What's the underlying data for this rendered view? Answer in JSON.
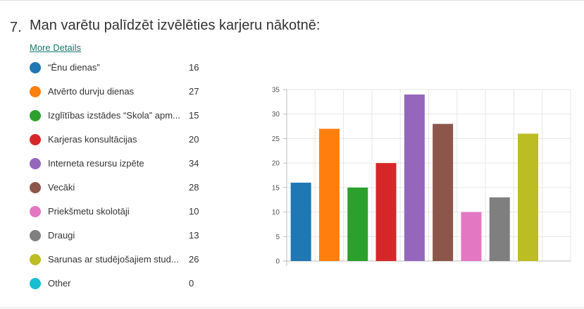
{
  "question": {
    "number": "7.",
    "title": "Man varētu palīdzēt izvēlēties karjeru nākotnē:",
    "more_details": "More Details"
  },
  "legend": [
    {
      "label": "“Ēnu dienas”",
      "count": "16",
      "color": "#1f77b4"
    },
    {
      "label": "Atvērto durvju dienas",
      "count": "27",
      "color": "#ff7f0e"
    },
    {
      "label": "Izglītības izstādes “Skola” apm...",
      "count": "15",
      "color": "#2ca02c"
    },
    {
      "label": "Karjeras konsultācijas",
      "count": "20",
      "color": "#d62728"
    },
    {
      "label": "Interneta resursu izpēte",
      "count": "34",
      "color": "#9467bd"
    },
    {
      "label": "Vecāki",
      "count": "28",
      "color": "#8c564b"
    },
    {
      "label": "Priekšmetu skolotāji",
      "count": "10",
      "color": "#e377c2"
    },
    {
      "label": "Draugi",
      "count": "13",
      "color": "#7f7f7f"
    },
    {
      "label": "Sarunas ar studējošajiem stud...",
      "count": "26",
      "color": "#bcbd22"
    },
    {
      "label": "Other",
      "count": "0",
      "color": "#17becf"
    }
  ],
  "chart_data": {
    "type": "bar",
    "categories": [
      "“Ēnu dienas”",
      "Atvērto durvju dienas",
      "Izglītības izstādes “Skola” apm...",
      "Karjeras konsultācijas",
      "Interneta resursu izpēte",
      "Vecāki",
      "Priekšmetu skolotāji",
      "Draugi",
      "Sarunas ar studējošajiem stud...",
      "Other"
    ],
    "values": [
      16,
      27,
      15,
      20,
      34,
      28,
      10,
      13,
      26,
      0
    ],
    "colors": [
      "#1f77b4",
      "#ff7f0e",
      "#2ca02c",
      "#d62728",
      "#9467bd",
      "#8c564b",
      "#e377c2",
      "#7f7f7f",
      "#bcbd22",
      "#17becf"
    ],
    "ylim": [
      0,
      35
    ],
    "yticks": [
      "0",
      "5",
      "10",
      "15",
      "20",
      "25",
      "30",
      "35"
    ],
    "grid": true,
    "legend_placement": "left"
  }
}
